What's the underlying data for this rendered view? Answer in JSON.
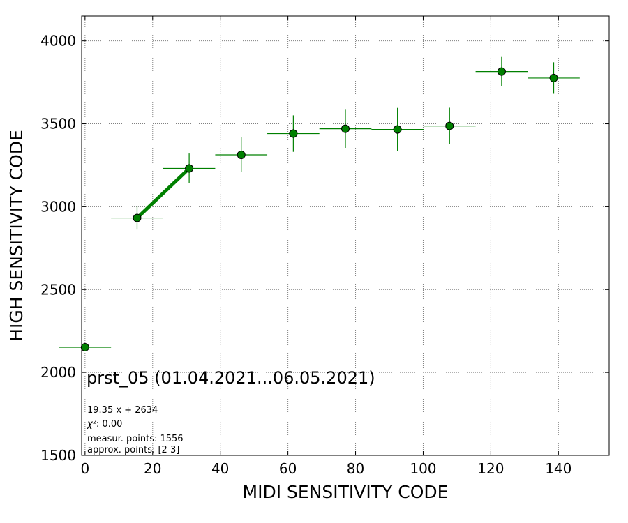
{
  "chart_data": {
    "type": "scatter",
    "title": "prst_05 (01.04.2021...06.05.2021)",
    "xlabel": "MIDI SENSITIVITY CODE",
    "ylabel": "HIGH SENSITIVITY CODE",
    "xlim": [
      -1,
      155
    ],
    "ylim": [
      1500,
      4150
    ],
    "xticks": [
      0,
      20,
      40,
      60,
      80,
      100,
      120,
      140
    ],
    "yticks": [
      1500,
      2000,
      2500,
      3000,
      3500,
      4000
    ],
    "grid": true,
    "color": "#008000",
    "points": [
      {
        "x": 0.0,
        "y": 2152,
        "xerr": 7.7,
        "yerr": 0
      },
      {
        "x": 15.4,
        "y": 2932,
        "xerr": 7.7,
        "yerr": 70
      },
      {
        "x": 30.8,
        "y": 3231,
        "xerr": 7.7,
        "yerr": 90
      },
      {
        "x": 46.2,
        "y": 3313,
        "xerr": 7.7,
        "yerr": 105
      },
      {
        "x": 61.6,
        "y": 3441,
        "xerr": 7.7,
        "yerr": 110
      },
      {
        "x": 77.0,
        "y": 3470,
        "xerr": 7.7,
        "yerr": 115
      },
      {
        "x": 92.4,
        "y": 3466,
        "xerr": 7.7,
        "yerr": 130
      },
      {
        "x": 107.8,
        "y": 3487,
        "xerr": 7.7,
        "yerr": 110
      },
      {
        "x": 123.2,
        "y": 3815,
        "xerr": 7.7,
        "yerr": 88
      },
      {
        "x": 138.6,
        "y": 3776,
        "xerr": 7.7,
        "yerr": 95
      }
    ],
    "fit_line": {
      "x": [
        15.4,
        30.8
      ],
      "y": [
        2932,
        3231
      ]
    },
    "annotations": {
      "fit_equation": "19.35 x + 2634",
      "chi2_label": "χ²",
      "chi2_value": ": 0.00",
      "measur_points": "measur. points: 1556",
      "approx_points": "approx. points: [2 3]"
    }
  }
}
